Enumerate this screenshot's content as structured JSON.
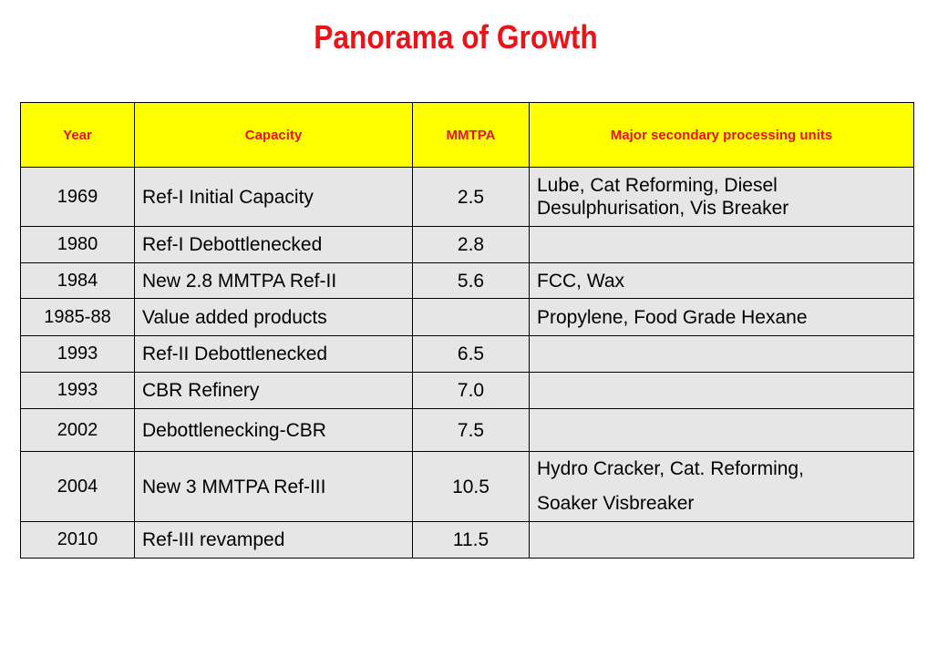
{
  "title": "Panorama of Growth",
  "headers": {
    "year": "Year",
    "capacity": "Capacity",
    "mmtpa": "MMTPA",
    "units": "Major secondary processing units"
  },
  "rows": [
    {
      "year": "1969",
      "capacity": "Ref-I Initial Capacity",
      "mmtpa": "2.5",
      "units": "Lube, Cat Reforming, Diesel Desulphurisation, Vis Breaker"
    },
    {
      "year": "1980",
      "capacity": "Ref-I Debottlenecked",
      "mmtpa": "2.8",
      "units": ""
    },
    {
      "year": "1984",
      "capacity": "New 2.8 MMTPA Ref-II",
      "mmtpa": "5.6",
      "units": "FCC, Wax"
    },
    {
      "year": "1985-88",
      "capacity": "Value added products",
      "mmtpa": "",
      "units": "Propylene, Food Grade Hexane"
    },
    {
      "year": "1993",
      "capacity": "Ref-II Debottlenecked",
      "mmtpa": "6.5",
      "units": ""
    },
    {
      "year": "1993",
      "capacity": "CBR Refinery",
      "mmtpa": "7.0",
      "units": ""
    },
    {
      "year": "2002",
      "capacity": "Debottlenecking-CBR",
      "mmtpa": "7.5",
      "units": ""
    },
    {
      "year": "2004",
      "capacity": "New 3 MMTPA Ref-III",
      "mmtpa": "10.5",
      "units_line1": "Hydro Cracker,  Cat. Reforming,",
      "units_line2": "Soaker Visbreaker"
    },
    {
      "year": "2010",
      "capacity": "Ref-III revamped",
      "mmtpa": "11.5",
      "units": ""
    }
  ]
}
